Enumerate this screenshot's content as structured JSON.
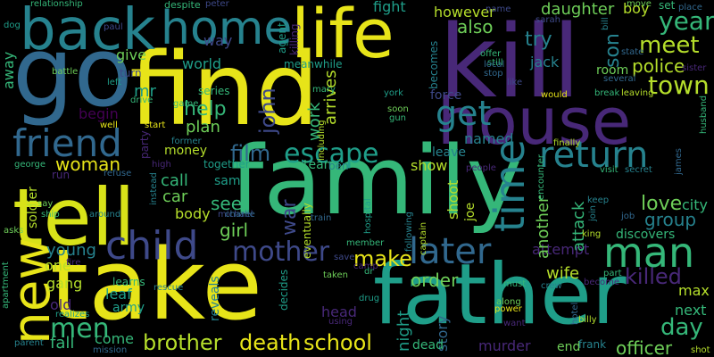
{
  "background": "#000000",
  "palette": {
    "yellow": "#e7e419",
    "lime": "#b5de2b",
    "green": "#35b779",
    "lightgreen": "#6ece58",
    "teal": "#1f9e89",
    "tealblue": "#26828e",
    "blue": "#31688e",
    "indigo": "#3e4989",
    "purple": "#482878",
    "darkpurple": "#440154"
  },
  "words": [
    "family",
    "take",
    "find",
    "kill",
    "tell",
    "father",
    "go",
    "house",
    "back",
    "life",
    "new",
    "home",
    "friend",
    "child",
    "return",
    "man",
    "later",
    "time",
    "get",
    "escape",
    "mother",
    "men",
    "town",
    "police",
    "year",
    "meet",
    "woman",
    "death",
    "school",
    "brother",
    "killed",
    "love",
    "group",
    "city",
    "day",
    "next",
    "max",
    "officer",
    "film",
    "help",
    "try",
    "son",
    "also",
    "john",
    "war",
    "see",
    "girl",
    "make",
    "order",
    "wife",
    "attempt",
    "attack",
    "another",
    "shoot",
    "story",
    "night",
    "show",
    "leave",
    "named",
    "body",
    "call",
    "car",
    "money",
    "plan",
    "world",
    "give",
    "way",
    "begin",
    "mr",
    "turn",
    "away",
    "soldier",
    "young",
    "one",
    "gang",
    "old",
    "fall",
    "come",
    "army",
    "leaf",
    "learns",
    "reveals",
    "party",
    "head",
    "murder",
    "dead",
    "end",
    "frank",
    "team",
    "ben",
    "sam",
    "work",
    "arrives",
    "becomes",
    "force",
    "room",
    "jack",
    "set",
    "daughter",
    "boy",
    "however",
    "fight",
    "agent",
    "meanwhile",
    "series",
    "killing",
    "relationship",
    "despite",
    "battle",
    "together",
    "eventually",
    "discovers",
    "joe",
    "well",
    "start",
    "drive",
    "mary",
    "york",
    "soon",
    "gun",
    "captain",
    "power",
    "taken",
    "member",
    "decides",
    "apartment",
    "parent",
    "asks",
    "ship",
    "fire",
    "realizes",
    "mission",
    "rescue",
    "around",
    "instead",
    "refuse",
    "george",
    "run",
    "dog",
    "left",
    "game",
    "former",
    "finally",
    "visit",
    "secret",
    "james",
    "husband",
    "sister",
    "place",
    "move",
    "sarah",
    "peter",
    "paul",
    "bill",
    "state",
    "several",
    "leaving",
    "break",
    "would",
    "still",
    "local",
    "stop",
    "offer",
    "name",
    "people",
    "encounter",
    "keep",
    "join",
    "job",
    "king",
    "part",
    "become",
    "crew",
    "must",
    "along",
    "hotel",
    "billy",
    "want",
    "shot",
    "including",
    "hospital",
    "following",
    "train",
    "michael",
    "charlie",
    "camp",
    "save",
    "using",
    "drug",
    "dr",
    "like",
    "high",
    "say"
  ]
}
